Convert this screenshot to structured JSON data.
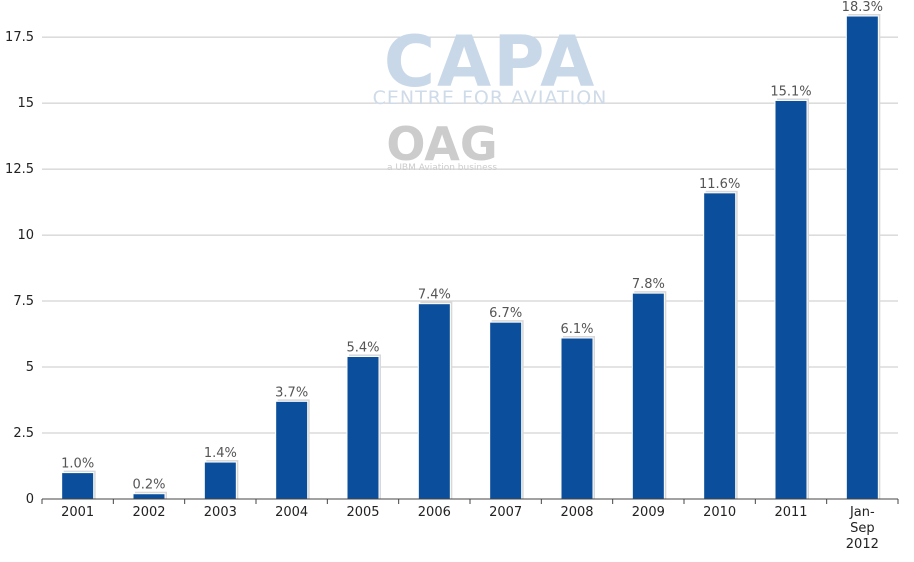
{
  "chart_data": {
    "type": "bar",
    "title": "",
    "xlabel": "",
    "ylabel": "",
    "categories": [
      "2001",
      "2002",
      "2003",
      "2004",
      "2005",
      "2006",
      "2007",
      "2008",
      "2009",
      "2010",
      "2011",
      "Jan-Sep 2012"
    ],
    "category_lines": [
      [
        "2001"
      ],
      [
        "2002"
      ],
      [
        "2003"
      ],
      [
        "2004"
      ],
      [
        "2005"
      ],
      [
        "2006"
      ],
      [
        "2007"
      ],
      [
        "2008"
      ],
      [
        "2009"
      ],
      [
        "2010"
      ],
      [
        "2011"
      ],
      [
        "Jan-",
        "Sep",
        "2012"
      ]
    ],
    "values": [
      1.0,
      0.2,
      1.4,
      3.7,
      5.4,
      7.4,
      6.7,
      6.1,
      7.8,
      11.6,
      15.1,
      18.3
    ],
    "data_labels": [
      "1.0%",
      "0.2%",
      "1.4%",
      "3.7%",
      "5.4%",
      "7.4%",
      "6.7%",
      "6.1%",
      "7.8%",
      "11.6%",
      "15.1%",
      "18.3%"
    ],
    "y_ticks": [
      0,
      2.5,
      5,
      7.5,
      10,
      12.5,
      15,
      17.5
    ],
    "y_tick_labels": [
      "0",
      "2.5",
      "5",
      "7.5",
      "10",
      "12.5",
      "15",
      "17.5"
    ],
    "ylim": [
      0,
      18.3
    ],
    "grid": true,
    "legend": "none",
    "colors": {
      "bar": "#0b4f9c",
      "grid": "#c8c8c8",
      "axis": "#444444"
    }
  },
  "watermark": {
    "brand": "CAPA",
    "tagline": "CENTRE FOR AVIATION",
    "oag": "OAG",
    "oag_tagline": "a UBM Aviation business"
  }
}
